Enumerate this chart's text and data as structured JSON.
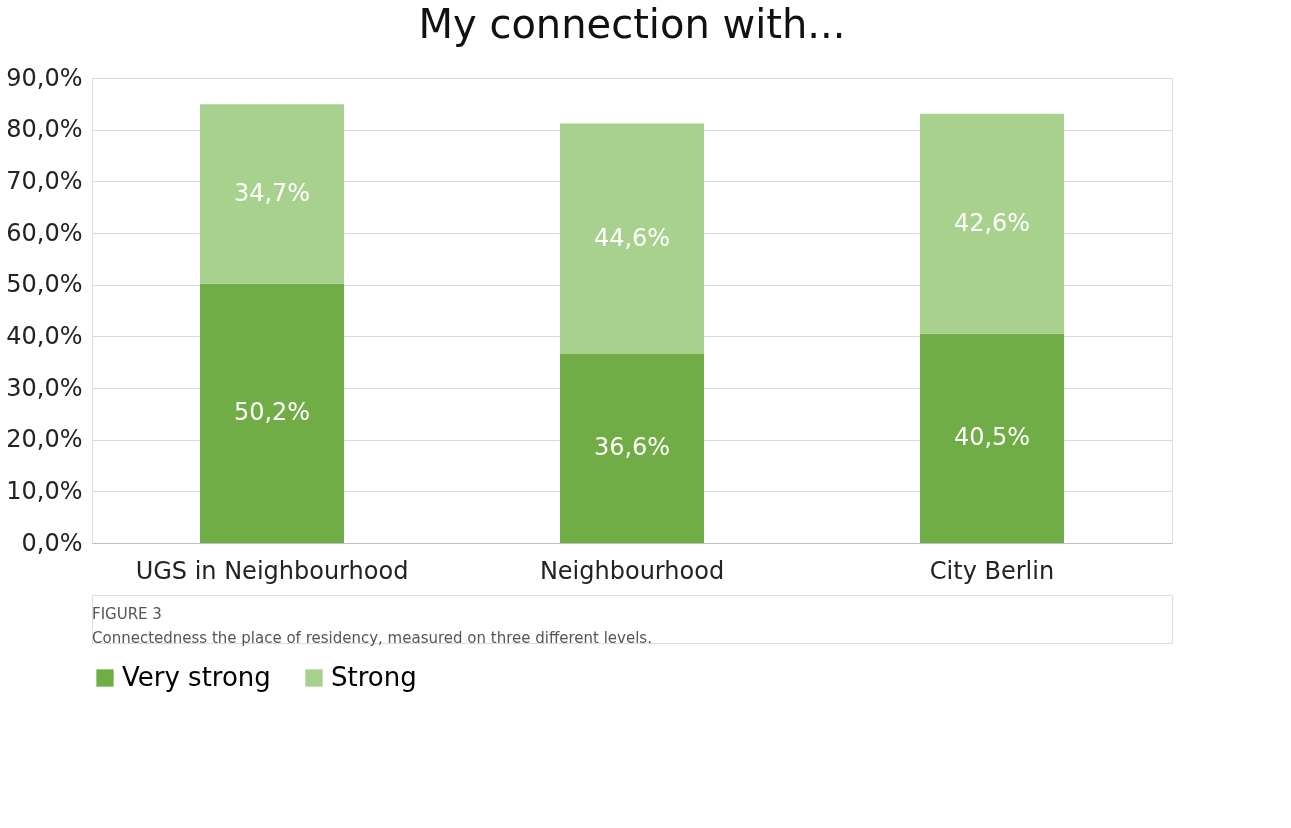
{
  "chart_data": {
    "type": "bar",
    "title": "My connection with...",
    "categories": [
      "UGS in Neighbourhood",
      "Neighbourhood",
      "City Berlin"
    ],
    "stacked": true,
    "series": [
      {
        "name": "Very strong",
        "color": "#70ad47",
        "values": [
          50.2,
          36.6,
          40.5
        ],
        "value_labels": [
          "50,2%",
          "36,6%",
          "40,5%"
        ]
      },
      {
        "name": "Strong",
        "color": "#a9d18e",
        "values": [
          34.7,
          44.6,
          42.6
        ],
        "value_labels": [
          "34,7%",
          "44,6%",
          "42,6%"
        ]
      }
    ],
    "ylim": [
      0,
      90
    ],
    "yticks": [
      {
        "value": 0,
        "label": "0,0%"
      },
      {
        "value": 10,
        "label": "10,0%"
      },
      {
        "value": 20,
        "label": "20,0%"
      },
      {
        "value": 30,
        "label": "30,0%"
      },
      {
        "value": 40,
        "label": "40,0%"
      },
      {
        "value": 50,
        "label": "50,0%"
      },
      {
        "value": 60,
        "label": "60,0%"
      },
      {
        "value": 70,
        "label": "70,0%"
      },
      {
        "value": 80,
        "label": "80,0%"
      },
      {
        "value": 90,
        "label": "90,0%"
      }
    ],
    "grid": "y",
    "legend": "bottom",
    "annotations": [
      "FIGURE 3",
      "Connectedness the place of residency, measured on three different levels."
    ]
  }
}
